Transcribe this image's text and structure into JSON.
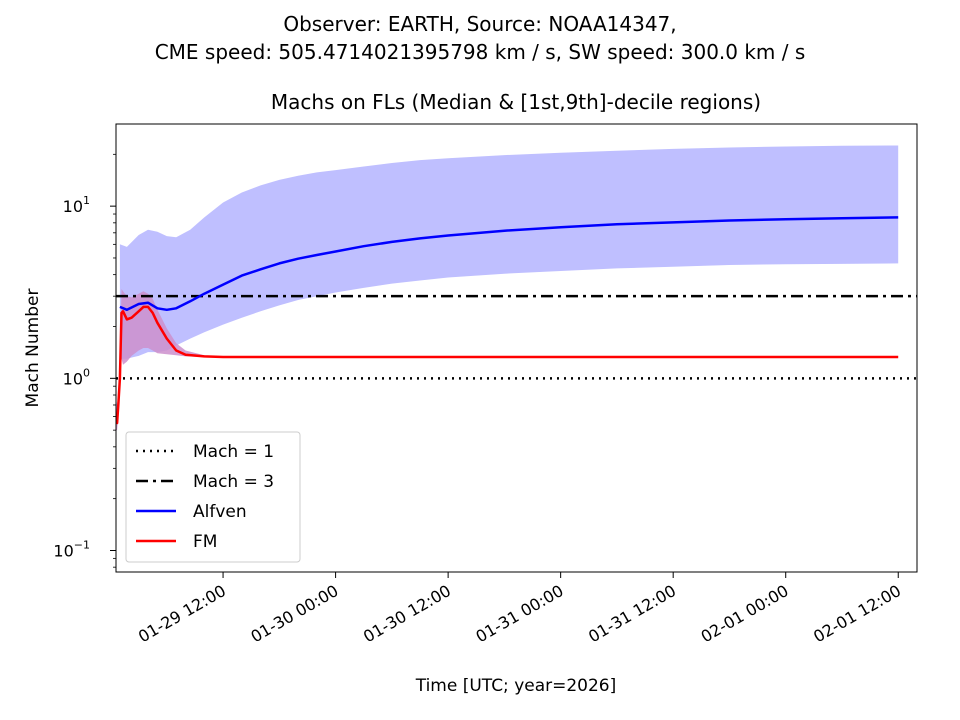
{
  "figure": {
    "suptitle_line1": "Observer: EARTH, Source: NOAA14347,",
    "suptitle_line2": "CME speed: 505.4714021395798 km / s, SW speed: 300.0 km / s"
  },
  "chart_data": {
    "type": "line",
    "title": "Machs on FLs (Median & [1st,9th]-decile regions)",
    "xlabel": "Time [UTC; year=2026]",
    "ylabel": "Mach Number",
    "yscale": "log",
    "ylim": [
      0.075,
      30
    ],
    "xlim": [
      "2026-01-29 00:35",
      "2026-02-01 14:00"
    ],
    "x_ticks": [
      "01-29 12:00",
      "01-30 00:00",
      "01-30 12:00",
      "01-31 00:00",
      "01-31 12:00",
      "02-01 00:00",
      "02-01 12:00"
    ],
    "y_ticks": [
      {
        "base": "10",
        "exp": "1",
        "value": 10
      },
      {
        "base": "10",
        "exp": "0",
        "value": 1
      },
      {
        "base": "10",
        "exp": "−1",
        "value": 0.1
      }
    ],
    "legend_position": "lower-left",
    "reference_lines": [
      {
        "name": "Mach = 1",
        "value": 1,
        "style": "dotted",
        "color": "#000000"
      },
      {
        "name": "Mach = 3",
        "value": 3,
        "style": "dashdot",
        "color": "#000000"
      }
    ],
    "series": [
      {
        "name": "Alfven",
        "color": "#0000ff",
        "band_color": "#bfbfff",
        "x": [
          "2026-01-29 01:00",
          "2026-01-29 01:45",
          "2026-01-29 03:00",
          "2026-01-29 04:00",
          "2026-01-29 05:00",
          "2026-01-29 06:00",
          "2026-01-29 07:00",
          "2026-01-29 08:30",
          "2026-01-29 10:00",
          "2026-01-29 12:00",
          "2026-01-29 14:00",
          "2026-01-29 16:00",
          "2026-01-29 18:00",
          "2026-01-29 20:00",
          "2026-01-29 22:00",
          "2026-01-30 00:00",
          "2026-01-30 03:00",
          "2026-01-30 06:00",
          "2026-01-30 09:00",
          "2026-01-30 12:00",
          "2026-01-30 18:00",
          "2026-01-31 00:00",
          "2026-01-31 06:00",
          "2026-01-31 12:00",
          "2026-01-31 18:00",
          "2026-02-01 00:00",
          "2026-02-01 06:00",
          "2026-02-01 12:00"
        ],
        "median": [
          2.6,
          2.5,
          2.7,
          2.75,
          2.55,
          2.5,
          2.55,
          2.8,
          3.1,
          3.5,
          3.95,
          4.3,
          4.65,
          4.95,
          5.2,
          5.45,
          5.85,
          6.2,
          6.5,
          6.75,
          7.2,
          7.55,
          7.85,
          8.05,
          8.25,
          8.4,
          8.5,
          8.6
        ],
        "decile_1": [
          1.3,
          1.3,
          1.35,
          1.42,
          1.42,
          1.45,
          1.55,
          1.7,
          1.85,
          2.05,
          2.25,
          2.45,
          2.65,
          2.85,
          3.0,
          3.15,
          3.35,
          3.55,
          3.7,
          3.85,
          4.05,
          4.2,
          4.35,
          4.45,
          4.55,
          4.6,
          4.62,
          4.65
        ],
        "decile_9": [
          6.0,
          5.8,
          6.8,
          7.3,
          7.1,
          6.7,
          6.6,
          7.3,
          8.6,
          10.5,
          12.0,
          13.2,
          14.2,
          15.0,
          15.7,
          16.2,
          17.0,
          17.8,
          18.5,
          19.0,
          19.8,
          20.4,
          21.0,
          21.5,
          21.9,
          22.2,
          22.4,
          22.5
        ]
      },
      {
        "name": "FM",
        "color": "#ff0000",
        "band_color": "#cc8fcc",
        "x": [
          "2026-01-29 00:36",
          "2026-01-29 00:42",
          "2026-01-29 00:50",
          "2026-01-29 01:00",
          "2026-01-29 01:10",
          "2026-01-29 01:20",
          "2026-01-29 01:45",
          "2026-01-29 02:15",
          "2026-01-29 03:00",
          "2026-01-29 03:30",
          "2026-01-29 04:00",
          "2026-01-29 04:30",
          "2026-01-29 05:00",
          "2026-01-29 06:00",
          "2026-01-29 07:00",
          "2026-01-29 08:00",
          "2026-01-29 10:00",
          "2026-01-29 12:00",
          "2026-01-30 00:00",
          "2026-01-31 00:00",
          "2026-02-01 00:00",
          "2026-02-01 12:00"
        ],
        "median": [
          0.62,
          0.55,
          0.7,
          1.0,
          2.4,
          2.45,
          2.2,
          2.25,
          2.45,
          2.6,
          2.6,
          2.4,
          2.1,
          1.7,
          1.45,
          1.37,
          1.34,
          1.33,
          1.33,
          1.33,
          1.33,
          1.33
        ],
        "decile_1": [
          0.5,
          0.5,
          0.6,
          0.9,
          1.3,
          1.2,
          1.25,
          1.35,
          1.45,
          1.5,
          1.5,
          1.45,
          1.4,
          1.38,
          1.36,
          1.34,
          1.33,
          1.33,
          1.33,
          1.33,
          1.33,
          1.33
        ],
        "decile_9": [
          0.75,
          0.7,
          0.8,
          1.2,
          3.3,
          3.2,
          3.0,
          2.95,
          3.1,
          3.2,
          3.1,
          2.9,
          2.5,
          1.95,
          1.6,
          1.45,
          1.36,
          1.34,
          1.34,
          1.34,
          1.34,
          1.34
        ]
      }
    ]
  }
}
